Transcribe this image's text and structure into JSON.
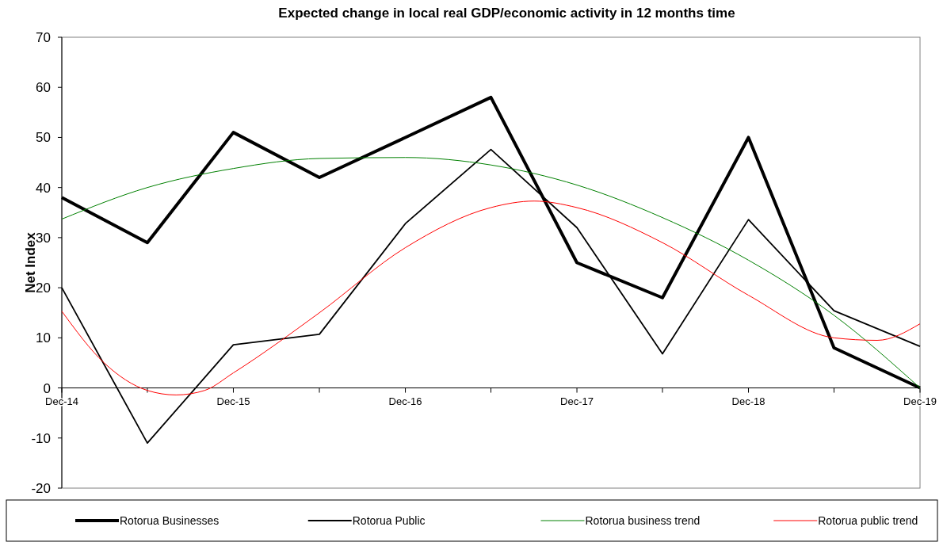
{
  "chart_data": {
    "type": "line",
    "title": "Expected change in local real GDP/economic activity in 12 months time",
    "ylabel": "Net Index",
    "x": [
      "2014-12",
      "2015-06",
      "2015-12",
      "2016-06",
      "2016-12",
      "2017-06",
      "2017-12",
      "2018-06",
      "2018-12",
      "2019-06",
      "2019-12"
    ],
    "xlim": [
      "2014-12",
      "2019-12"
    ],
    "xticks": [
      {
        "value": "2014-12",
        "label": "Dec-14"
      },
      {
        "value": "2015-06",
        "label": null
      },
      {
        "value": "2015-12",
        "label": "Dec-15"
      },
      {
        "value": "2016-06",
        "label": null
      },
      {
        "value": "2016-12",
        "label": "Dec-16"
      },
      {
        "value": "2017-06",
        "label": null
      },
      {
        "value": "2017-12",
        "label": "Dec-17"
      },
      {
        "value": "2018-06",
        "label": null
      },
      {
        "value": "2018-12",
        "label": "Dec-18"
      },
      {
        "value": "2019-06",
        "label": null
      },
      {
        "value": "2019-12",
        "label": "Dec-19"
      }
    ],
    "ylim": [
      -20,
      70
    ],
    "yticks": [
      -20,
      -10,
      0,
      10,
      20,
      30,
      40,
      50,
      60,
      70
    ],
    "grid": false,
    "legend": "bottom",
    "marker": "none",
    "series": [
      {
        "name": "Rotorua Businesses",
        "color": "#000000",
        "values": [
          38,
          29,
          51,
          42,
          50,
          58,
          25,
          18,
          50,
          8,
          0
        ]
      },
      {
        "name": "Rotorua Public",
        "color": "#000000",
        "values": [
          20,
          -11,
          8.6,
          10.7,
          32.8,
          47.6,
          32,
          6.8,
          33.6,
          15.4,
          8.3
        ]
      },
      {
        "name": "Rotorua business trend",
        "color": "#008000",
        "x": [
          "2014-12",
          "2015-06",
          "2015-12",
          "2016-06",
          "2016-12",
          "2017-06",
          "2017-12",
          "2018-06",
          "2018-12",
          "2019-06",
          "2019-12"
        ],
        "values": [
          33.7,
          40,
          43.8,
          45.8,
          46,
          44.5,
          40.5,
          34,
          25.5,
          14.5,
          0
        ]
      },
      {
        "name": "Rotorua public trend",
        "color": "#ff0000",
        "x": [
          "2014-12",
          "2015-03",
          "2015-06",
          "2015-08",
          "2015-10",
          "2015-12",
          "2016-06",
          "2016-12",
          "2017-06",
          "2017-09",
          "2017-12",
          "2018-06",
          "2018-12",
          "2019-06",
          "2019-09",
          "2019-12"
        ],
        "values": [
          15.3,
          5,
          -0.5,
          -1.4,
          -0.5,
          3,
          15,
          28,
          36,
          37.3,
          36,
          29,
          18.5,
          10,
          9.5,
          12.8
        ]
      }
    ]
  }
}
